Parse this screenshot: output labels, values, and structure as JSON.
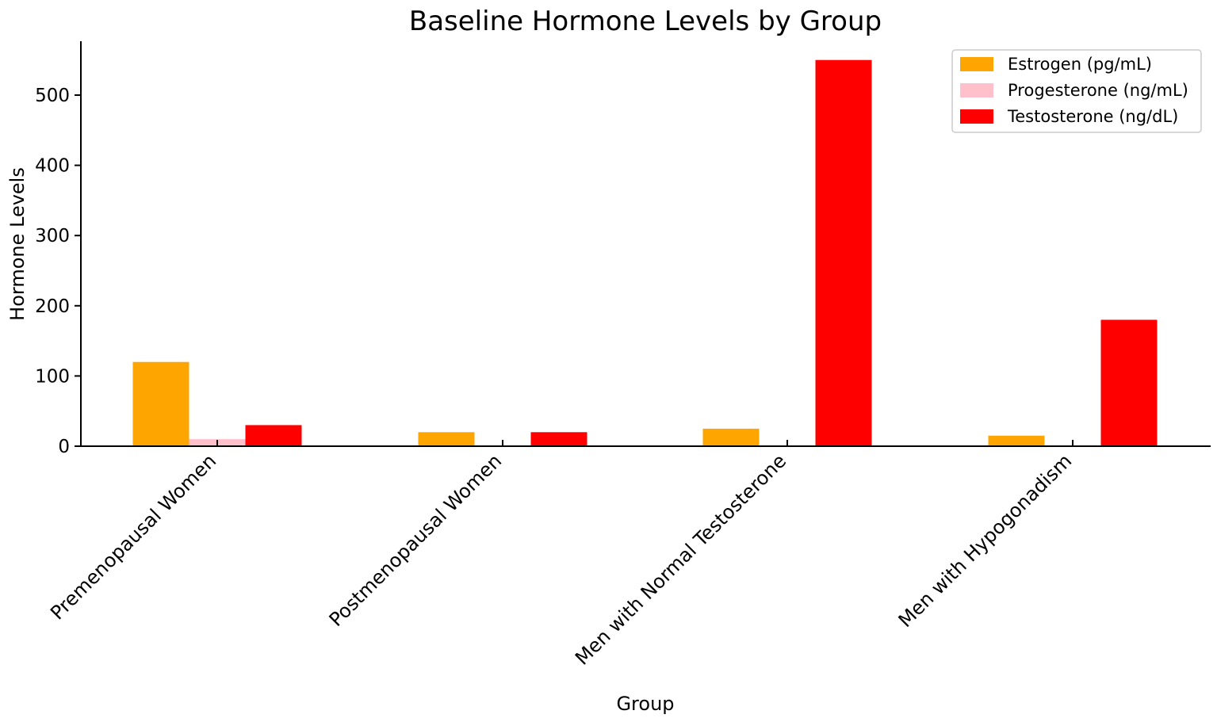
{
  "chart_data": {
    "type": "bar",
    "title": "Baseline Hormone Levels by Group",
    "xlabel": "Group",
    "ylabel": "Hormone Levels",
    "categories": [
      "Premenopausal Women",
      "Postmenopausal Women",
      "Men with Normal Testosterone",
      "Men with Hypogonadism"
    ],
    "series": [
      {
        "name": "Estrogen (pg/mL)",
        "color": "#FFA500",
        "values": [
          120,
          20,
          25,
          15
        ]
      },
      {
        "name": "Progesterone (ng/mL)",
        "color": "#FFC0CB",
        "values": [
          10,
          0,
          0,
          0
        ]
      },
      {
        "name": "Testosterone (ng/dL)",
        "color": "#FF0000",
        "values": [
          30,
          20,
          550,
          180
        ]
      }
    ],
    "yticks": [
      0,
      100,
      200,
      300,
      400,
      500
    ],
    "ylim": [
      0,
      580
    ],
    "grid": false,
    "legend_position": "top-right"
  }
}
